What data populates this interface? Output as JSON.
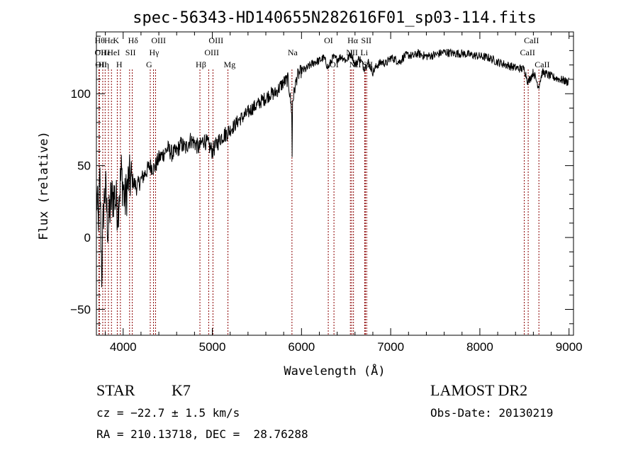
{
  "chart_data": {
    "type": "line",
    "title": "spec-56343-HD140655N282616F01_sp03-114.fits",
    "xlabel": "Wavelength (Å)",
    "ylabel": "Flux (relative)",
    "xlim": [
      3700,
      9050
    ],
    "ylim": [
      -68,
      143
    ],
    "xticks": [
      4000,
      5000,
      6000,
      7000,
      8000,
      9000
    ],
    "yticks": [
      -50,
      0,
      50,
      100
    ],
    "grid": false,
    "line_color": "#000000",
    "marker_color": "#8b0000",
    "series": [
      {
        "x": [
          3700,
          3720,
          3740,
          3760,
          3780,
          3800,
          3830,
          3860,
          3900,
          3940,
          3980,
          4020,
          4060,
          4100,
          4150,
          4200,
          4250,
          4300,
          4350,
          4400,
          4450,
          4500,
          4550,
          4600,
          4650,
          4700,
          4750,
          4800,
          4850,
          4900,
          4950,
          5000,
          5050,
          5100,
          5150,
          5200,
          5250,
          5300,
          5350,
          5400,
          5450,
          5500,
          5550,
          5600,
          5650,
          5700,
          5750,
          5800,
          5850,
          5890,
          5895,
          5900,
          5950,
          6000,
          6050,
          6100,
          6150,
          6200,
          6250,
          6300,
          6350,
          6400,
          6450,
          6500,
          6560,
          6600,
          6650,
          6700,
          6750,
          6800,
          6850,
          6900,
          6950,
          7000,
          7050,
          7100,
          7150,
          7200,
          7250,
          7300,
          7400,
          7500,
          7600,
          7700,
          7800,
          7900,
          8000,
          8100,
          8200,
          8300,
          8400,
          8500,
          8540,
          8600,
          8660,
          8700,
          8800,
          8900,
          8950,
          8980,
          9000
        ],
        "y": [
          30,
          10,
          40,
          -25,
          20,
          35,
          5,
          25,
          30,
          20,
          45,
          25,
          40,
          40,
          35,
          40,
          45,
          50,
          48,
          55,
          58,
          62,
          58,
          60,
          65,
          62,
          68,
          66,
          62,
          68,
          65,
          60,
          65,
          70,
          72,
          75,
          78,
          82,
          84,
          87,
          90,
          92,
          95,
          97,
          100,
          100,
          104,
          108,
          110,
          88,
          55,
          95,
          112,
          116,
          117,
          120,
          122,
          123,
          125,
          118,
          125,
          124,
          126,
          123,
          128,
          120,
          125,
          118,
          122,
          115,
          120,
          122,
          121,
          125,
          124,
          122,
          126,
          127,
          126,
          128,
          126,
          127,
          129,
          128,
          128,
          127,
          126,
          125,
          122,
          120,
          118,
          117,
          108,
          115,
          105,
          115,
          112,
          110,
          109,
          108,
          110
        ]
      }
    ],
    "line_markers": [
      {
        "x": 3728,
        "label": "Hθ",
        "row": 0
      },
      {
        "x": 3728,
        "label": "OII",
        "row": 1
      },
      {
        "x": 3734,
        "label": "OII",
        "row": 2
      },
      {
        "x": 3771,
        "label": "Hη",
        "row": 2
      },
      {
        "x": 3798,
        "label": "Hε",
        "row": 1
      },
      {
        "x": 3835,
        "label": "Hε",
        "row": 0
      },
      {
        "x": 3869,
        "label": "HeI",
        "row": 1
      },
      {
        "x": 3934,
        "label": "K",
        "row": 0
      },
      {
        "x": 3969,
        "label": "H",
        "row": 2
      },
      {
        "x": 4072,
        "label": "SII",
        "row": 1
      },
      {
        "x": 4102,
        "label": "Hδ",
        "row": 0
      },
      {
        "x": 4304,
        "label": "G",
        "row": 2
      },
      {
        "x": 4340,
        "label": "Hγ",
        "row": 1
      },
      {
        "x": 4363,
        "label": "OIII",
        "row": 0
      },
      {
        "x": 4861,
        "label": "Hβ",
        "row": 2
      },
      {
        "x": 4959,
        "label": "OIII",
        "row": 1
      },
      {
        "x": 5007,
        "label": "OIII",
        "row": 0
      },
      {
        "x": 5175,
        "label": "Mg",
        "row": 2
      },
      {
        "x": 5893,
        "label": "Na",
        "row": 1
      },
      {
        "x": 6300,
        "label": "OI",
        "row": 0
      },
      {
        "x": 6364,
        "label": "OI",
        "row": 2
      },
      {
        "x": 6548,
        "label": "NII",
        "row": 1
      },
      {
        "x": 6563,
        "label": "Hα",
        "row": 0
      },
      {
        "x": 6583,
        "label": "NII",
        "row": 2
      },
      {
        "x": 6708,
        "label": "Li",
        "row": 1
      },
      {
        "x": 6716,
        "label": "SII",
        "row": 0
      },
      {
        "x": 6731,
        "label": "SII",
        "row": 2
      },
      {
        "x": 8498,
        "label": "CaII",
        "row": 1
      },
      {
        "x": 8542,
        "label": "CaII",
        "row": 0
      },
      {
        "x": 8662,
        "label": "CaII",
        "row": 2
      }
    ]
  },
  "info": {
    "obj_class": "STAR",
    "subclass": "K7",
    "survey": "LAMOST DR2",
    "cz": "cz = −22.7 ± 1.5 km/s",
    "obs_date": "Obs-Date: 20130219",
    "coords": "RA = 210.13718, DEC =  28.76288"
  }
}
